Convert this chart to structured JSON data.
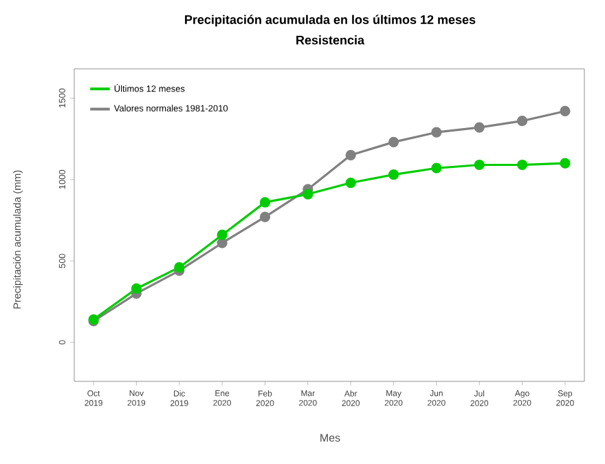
{
  "chart_data": {
    "type": "line",
    "title": "Precipitación acumulada en los últimos 12 meses",
    "subtitle": "Resistencia",
    "xlabel": "Mes",
    "ylabel": "Precipitación acumulada (mm)",
    "categories": [
      "Oct 2019",
      "Nov 2019",
      "Dic 2019",
      "Ene 2020",
      "Feb 2020",
      "Mar 2020",
      "Abr 2020",
      "May 2020",
      "Jun 2020",
      "Jul 2020",
      "Ago 2020",
      "Sep 2020"
    ],
    "series": [
      {
        "name": "Últimos 12 meses",
        "color": "#00cc00",
        "values": [
          140,
          330,
          460,
          660,
          860,
          910,
          980,
          1030,
          1070,
          1090,
          1090,
          1100
        ]
      },
      {
        "name": "Valores normales 1981-2010",
        "color": "#808080",
        "values": [
          130,
          300,
          440,
          610,
          770,
          940,
          1150,
          1230,
          1290,
          1320,
          1360,
          1420
        ]
      }
    ],
    "ylim": [
      -240,
      1680
    ],
    "yticks": [
      0,
      500,
      1000,
      1500
    ],
    "marker": "circle",
    "line_style": "solid",
    "legend": "top left",
    "grid": false
  }
}
